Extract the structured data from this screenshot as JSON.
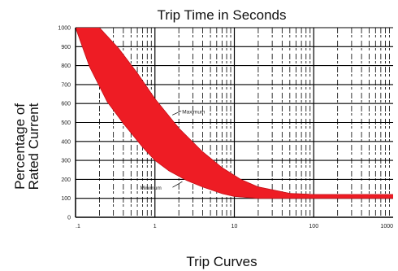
{
  "chart_data": {
    "type": "area",
    "title": "Trip Time in Seconds",
    "xlabel": "Trip Curves",
    "ylabel_lines": [
      "Percentage of",
      "Rated Current"
    ],
    "x_scale": "log",
    "xlim": [
      0.1,
      1000
    ],
    "ylim": [
      0,
      1000
    ],
    "x_ticks": [
      0.1,
      1,
      10,
      100,
      1000
    ],
    "x_tick_labels": [
      ".1",
      "1",
      "10",
      "100",
      "1000"
    ],
    "y_ticks": [
      0,
      100,
      200,
      300,
      400,
      500,
      600,
      700,
      800,
      900,
      1000
    ],
    "y_tick_labels": [
      "0",
      "100",
      "200",
      "300",
      "400",
      "500",
      "600",
      "700",
      "800",
      "900",
      "1000"
    ],
    "grid": true,
    "band_color": "#ee1c24",
    "series": [
      {
        "name": "Maximum",
        "x": [
          0.2,
          0.35,
          0.6,
          1,
          2,
          4,
          7,
          12,
          20,
          50,
          100,
          200,
          500,
          1000
        ],
        "y": [
          1000,
          890,
          760,
          625,
          470,
          345,
          262,
          200,
          160,
          126,
          120,
          120,
          120,
          120
        ]
      },
      {
        "name": "Minimum",
        "x": [
          0.1,
          0.15,
          0.25,
          0.4,
          0.7,
          1,
          1.5,
          2.5,
          4,
          7,
          10,
          20,
          50,
          100,
          1000
        ],
        "y": [
          1000,
          795,
          610,
          495,
          370,
          300,
          245,
          195,
          160,
          125,
          110,
          100,
          100,
          100,
          100
        ]
      }
    ],
    "annotations": [
      {
        "text": "Maximum",
        "x": 2.2,
        "y": 548
      },
      {
        "text": "Minimum",
        "x": 0.65,
        "y": 145
      }
    ]
  }
}
